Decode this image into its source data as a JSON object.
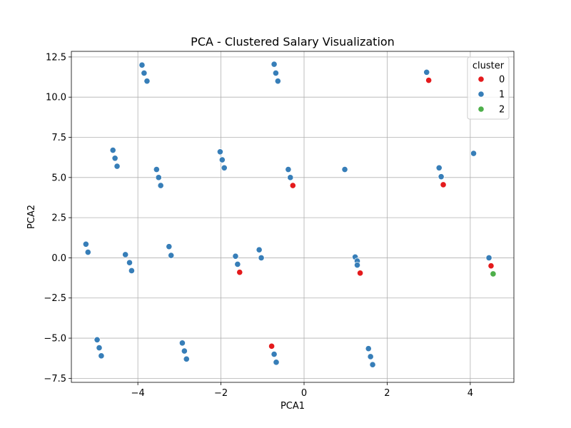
{
  "chart_data": {
    "type": "scatter",
    "title": "PCA - Clustered Salary Visualization",
    "xlabel": "PCA1",
    "ylabel": "PCA2",
    "xlim": [
      -5.6,
      5.05
    ],
    "ylim": [
      -7.75,
      12.85
    ],
    "xticks": [
      -4,
      -2,
      0,
      2,
      4
    ],
    "yticks": [
      -7.5,
      -5.0,
      -2.5,
      0.0,
      2.5,
      5.0,
      7.5,
      10.0,
      12.5
    ],
    "xtick_labels": [
      "−4",
      "−2",
      "0",
      "2",
      "4"
    ],
    "ytick_labels": [
      "−7.5",
      "−5.0",
      "−2.5",
      "0.0",
      "2.5",
      "5.0",
      "7.5",
      "10.0",
      "12.5"
    ],
    "grid": true,
    "legend": {
      "title": "cluster",
      "placement": "top-right",
      "entries": [
        {
          "label": "0",
          "color": "#e41a1c"
        },
        {
          "label": "1",
          "color": "#377eb8"
        },
        {
          "label": "2",
          "color": "#4daf4a"
        }
      ]
    },
    "series": [
      {
        "name": "0",
        "color": "#e41a1c",
        "points": [
          [
            3.0,
            11.05
          ],
          [
            -0.27,
            4.5
          ],
          [
            3.35,
            4.55
          ],
          [
            -1.55,
            -0.9
          ],
          [
            1.35,
            -0.95
          ],
          [
            -0.78,
            -5.5
          ],
          [
            4.5,
            -0.5
          ]
        ]
      },
      {
        "name": "1",
        "color": "#377eb8",
        "points": [
          [
            -3.9,
            12.0
          ],
          [
            -3.85,
            11.5
          ],
          [
            -3.78,
            11.0
          ],
          [
            -0.72,
            12.05
          ],
          [
            -0.68,
            11.5
          ],
          [
            -0.63,
            11.0
          ],
          [
            2.95,
            11.55
          ],
          [
            -4.6,
            6.7
          ],
          [
            -4.55,
            6.2
          ],
          [
            -4.5,
            5.7
          ],
          [
            -3.55,
            5.5
          ],
          [
            -3.5,
            5.0
          ],
          [
            -3.45,
            4.5
          ],
          [
            -2.02,
            6.6
          ],
          [
            -1.97,
            6.1
          ],
          [
            -1.92,
            5.6
          ],
          [
            -0.38,
            5.5
          ],
          [
            -0.33,
            5.0
          ],
          [
            0.98,
            5.5
          ],
          [
            3.25,
            5.6
          ],
          [
            3.3,
            5.05
          ],
          [
            4.08,
            6.5
          ],
          [
            -5.25,
            0.85
          ],
          [
            -5.2,
            0.35
          ],
          [
            -4.3,
            0.2
          ],
          [
            -4.2,
            -0.3
          ],
          [
            -4.15,
            -0.8
          ],
          [
            -3.25,
            0.7
          ],
          [
            -3.2,
            0.15
          ],
          [
            -1.65,
            0.1
          ],
          [
            -1.6,
            -0.4
          ],
          [
            -1.08,
            0.5
          ],
          [
            -1.03,
            0.0
          ],
          [
            1.23,
            0.05
          ],
          [
            1.28,
            -0.2
          ],
          [
            1.28,
            -0.45
          ],
          [
            4.45,
            0.0
          ],
          [
            -4.98,
            -5.1
          ],
          [
            -4.93,
            -5.6
          ],
          [
            -4.88,
            -6.1
          ],
          [
            -2.93,
            -5.3
          ],
          [
            -2.88,
            -5.8
          ],
          [
            -2.83,
            -6.3
          ],
          [
            -0.72,
            -6.0
          ],
          [
            -0.67,
            -6.5
          ],
          [
            1.55,
            -5.65
          ],
          [
            1.6,
            -6.15
          ],
          [
            1.65,
            -6.65
          ]
        ]
      },
      {
        "name": "2",
        "color": "#4daf4a",
        "points": [
          [
            4.55,
            -1.0
          ]
        ]
      }
    ]
  }
}
